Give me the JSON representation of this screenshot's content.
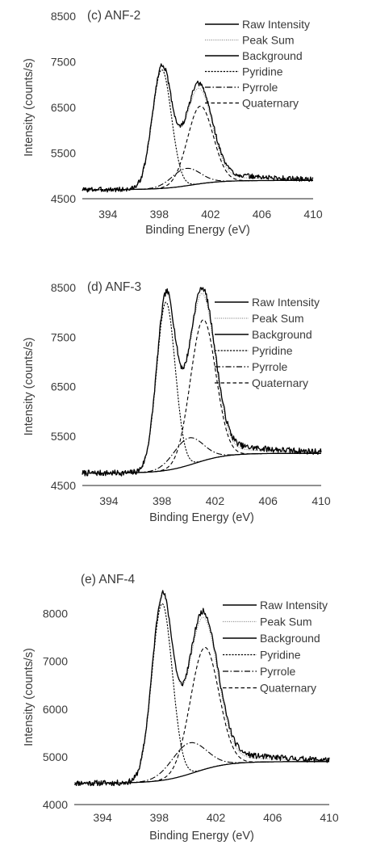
{
  "chart_data": [
    {
      "type": "line",
      "title": "(c) ANF-2",
      "xlabel": "Binding Energy (eV)",
      "ylabel": "Intensity (counts/s)",
      "xlim": [
        392,
        410
      ],
      "ylim": [
        4500,
        8500
      ],
      "xticks": [
        394,
        398,
        402,
        406,
        410
      ],
      "yticks": [
        4500,
        5500,
        6500,
        7500,
        8500
      ],
      "grid": false,
      "legend": "top-right",
      "legend_entries": [
        "Raw Intensity",
        "Peak Sum",
        "Background",
        "Pyridine",
        "Pyrrole",
        "Quaternary"
      ],
      "params": {
        "bg_low": 4700,
        "bg_high": 4900,
        "pyridine": {
          "center": 398.2,
          "height": 2600,
          "width": 0.75
        },
        "pyrrole": {
          "center": 400.1,
          "height": 380,
          "width": 1.1
        },
        "quaternary": {
          "center": 401.2,
          "height": 1700,
          "width": 1.0
        },
        "tail": {
          "height": 260,
          "width": 4.0
        },
        "noise": 55,
        "seed": 3
      }
    },
    {
      "type": "line",
      "title": "(d) ANF-3",
      "xlabel": "Binding Energy (eV)",
      "ylabel": "Intensity (counts/s)",
      "xlim": [
        392,
        410
      ],
      "ylim": [
        4500,
        8500
      ],
      "xticks": [
        394,
        398,
        402,
        406,
        410
      ],
      "yticks": [
        4500,
        5500,
        6500,
        7500,
        8500
      ],
      "grid": false,
      "legend": "top-right",
      "legend_entries": [
        "Raw Intensity",
        "Peak Sum",
        "Background",
        "Pyridine",
        "Pyrrole",
        "Quaternary"
      ],
      "params": {
        "bg_low": 4750,
        "bg_high": 5150,
        "pyridine": {
          "center": 398.3,
          "height": 3400,
          "width": 0.7
        },
        "pyrrole": {
          "center": 400.0,
          "height": 550,
          "width": 1.1
        },
        "quaternary": {
          "center": 401.1,
          "height": 2850,
          "width": 0.95
        },
        "tail": {
          "height": 320,
          "width": 4.0
        },
        "noise": 60,
        "seed": 7
      }
    },
    {
      "type": "line",
      "title": "(e) ANF-4",
      "xlabel": "Binding Energy (eV)",
      "ylabel": "Intensity (counts/s)",
      "xlim": [
        392,
        410
      ],
      "ylim": [
        4000,
        8500
      ],
      "xticks": [
        394,
        398,
        402,
        406,
        410
      ],
      "yticks": [
        4000,
        5000,
        6000,
        7000,
        8000
      ],
      "grid": false,
      "legend": "top-right",
      "legend_entries": [
        "Raw Intensity",
        "Peak Sum",
        "Background",
        "Pyridine",
        "Pyrrole",
        "Quaternary"
      ],
      "params": {
        "bg_low": 4450,
        "bg_high": 4900,
        "pyridine": {
          "center": 398.2,
          "height": 3700,
          "width": 0.72
        },
        "pyrrole": {
          "center": 400.1,
          "height": 650,
          "width": 1.2
        },
        "quaternary": {
          "center": 401.2,
          "height": 2550,
          "width": 1.0
        },
        "tail": {
          "height": 330,
          "width": 4.0
        },
        "noise": 60,
        "seed": 11
      }
    }
  ]
}
